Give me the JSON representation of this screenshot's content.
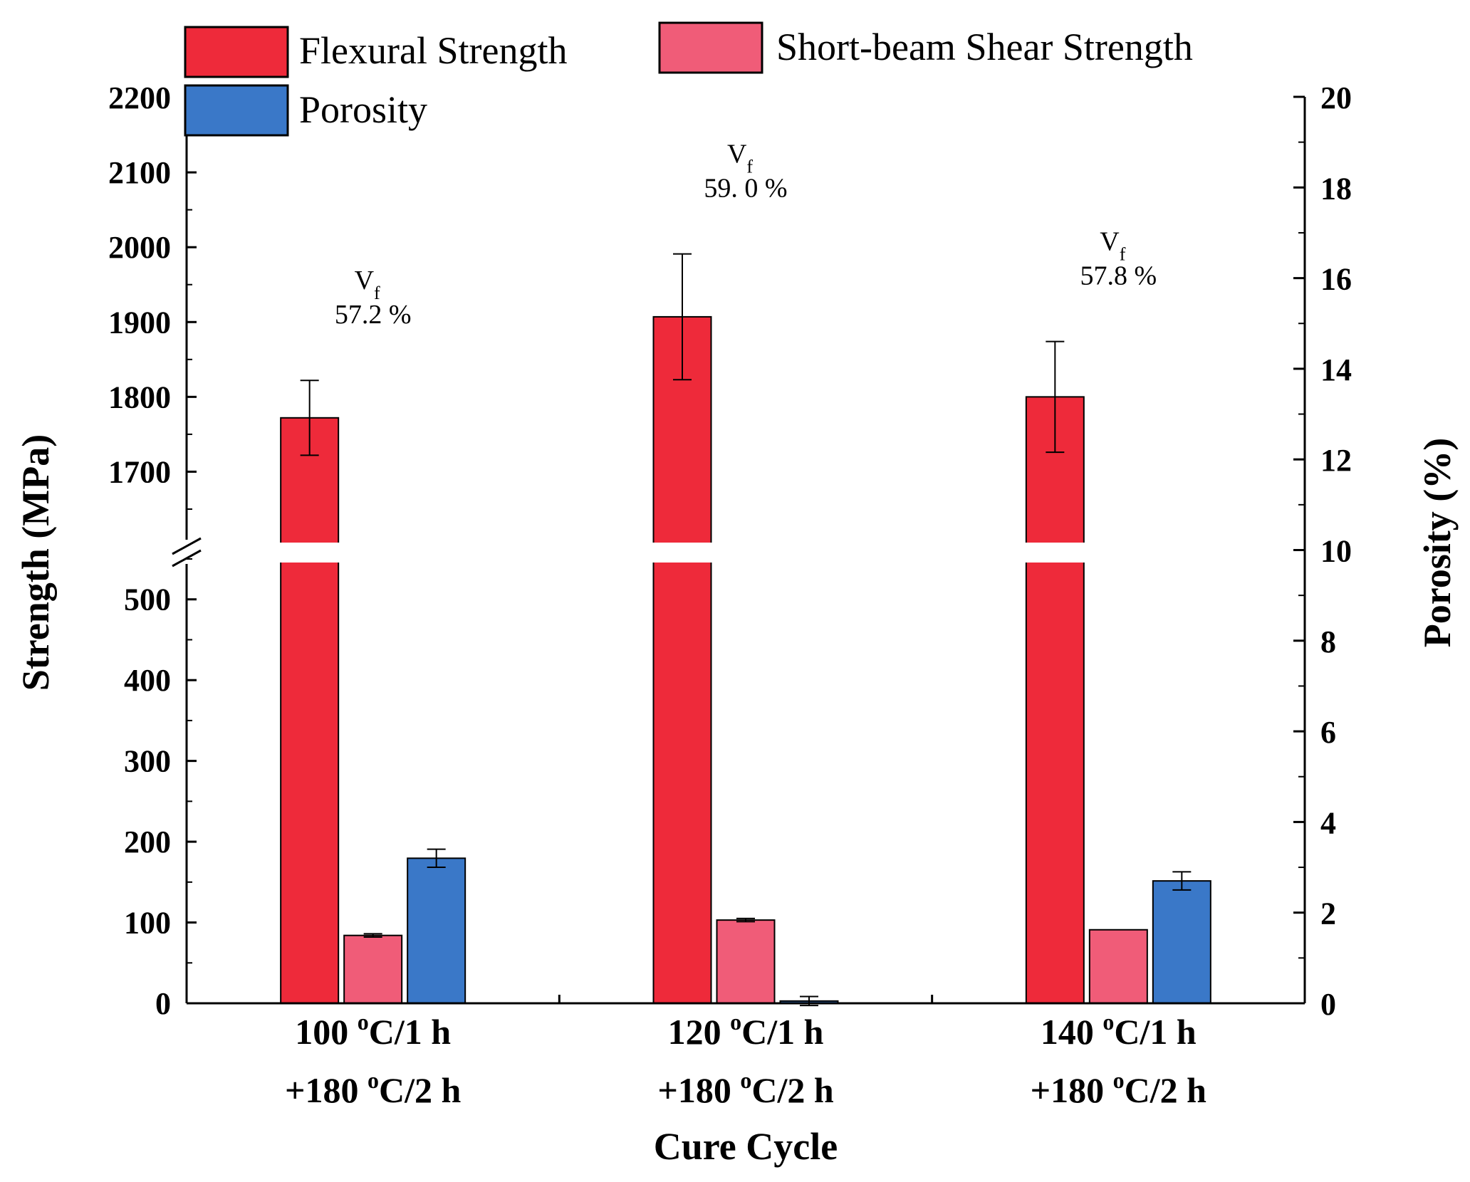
{
  "chart_data": {
    "type": "bar",
    "title": "",
    "xlabel": "Cure Cycle",
    "ylabel": "Strength (MPa)",
    "y2label": "Porosity (%)",
    "categories": [
      {
        "line1_num": "100 ",
        "line1_sup": "o",
        "line1_rest": "C/1 h",
        "line2_pre": "+180 ",
        "line2_sup": "o",
        "line2_rest": "C/2 h"
      },
      {
        "line1_num": "120 ",
        "line1_sup": "o",
        "line1_rest": "C/1 h",
        "line2_pre": "+180 ",
        "line2_sup": "o",
        "line2_rest": "C/2 h"
      },
      {
        "line1_num": "140 ",
        "line1_sup": "o",
        "line1_rest": "C/1 h",
        "line2_pre": "+180 ",
        "line2_sup": "o",
        "line2_rest": "C/2 h"
      }
    ],
    "series": [
      {
        "name": "Flexural Strength",
        "axis": "left",
        "color": "#ee2a3a",
        "values": [
          1772,
          1907,
          1800
        ],
        "errors": [
          50,
          84,
          74
        ]
      },
      {
        "name": "Short-beam Shear Strength",
        "axis": "left",
        "color": "#f05c78",
        "values": [
          84,
          103,
          91
        ],
        "errors": [
          2,
          2,
          0
        ]
      },
      {
        "name": "Porosity",
        "axis": "right",
        "color": "#3a78c8",
        "values": [
          3.2,
          0.05,
          2.7
        ],
        "errors": [
          0.2,
          0.1,
          0.2
        ]
      }
    ],
    "annotations": [
      {
        "v": "V",
        "sub": "f",
        "value": "57.2 %"
      },
      {
        "v": "V",
        "sub": "f",
        "value": "59. 0 %"
      },
      {
        "v": "V",
        "sub": "f",
        "value": "57.8 %"
      }
    ],
    "y_axis_left": {
      "broken": true,
      "lower_range": [
        0,
        550
      ],
      "upper_range": [
        1650,
        2200
      ],
      "lower_ticks": [
        "0",
        "100",
        "200",
        "300",
        "400",
        "500"
      ],
      "upper_ticks": [
        "1700",
        "1800",
        "1900",
        "2000",
        "2100",
        "2200"
      ]
    },
    "y_axis_right": {
      "range": [
        0,
        20
      ],
      "ticks": [
        "0",
        "2",
        "4",
        "6",
        "8",
        "10",
        "12",
        "14",
        "16",
        "18",
        "20"
      ]
    },
    "legend_position": "top-left"
  }
}
